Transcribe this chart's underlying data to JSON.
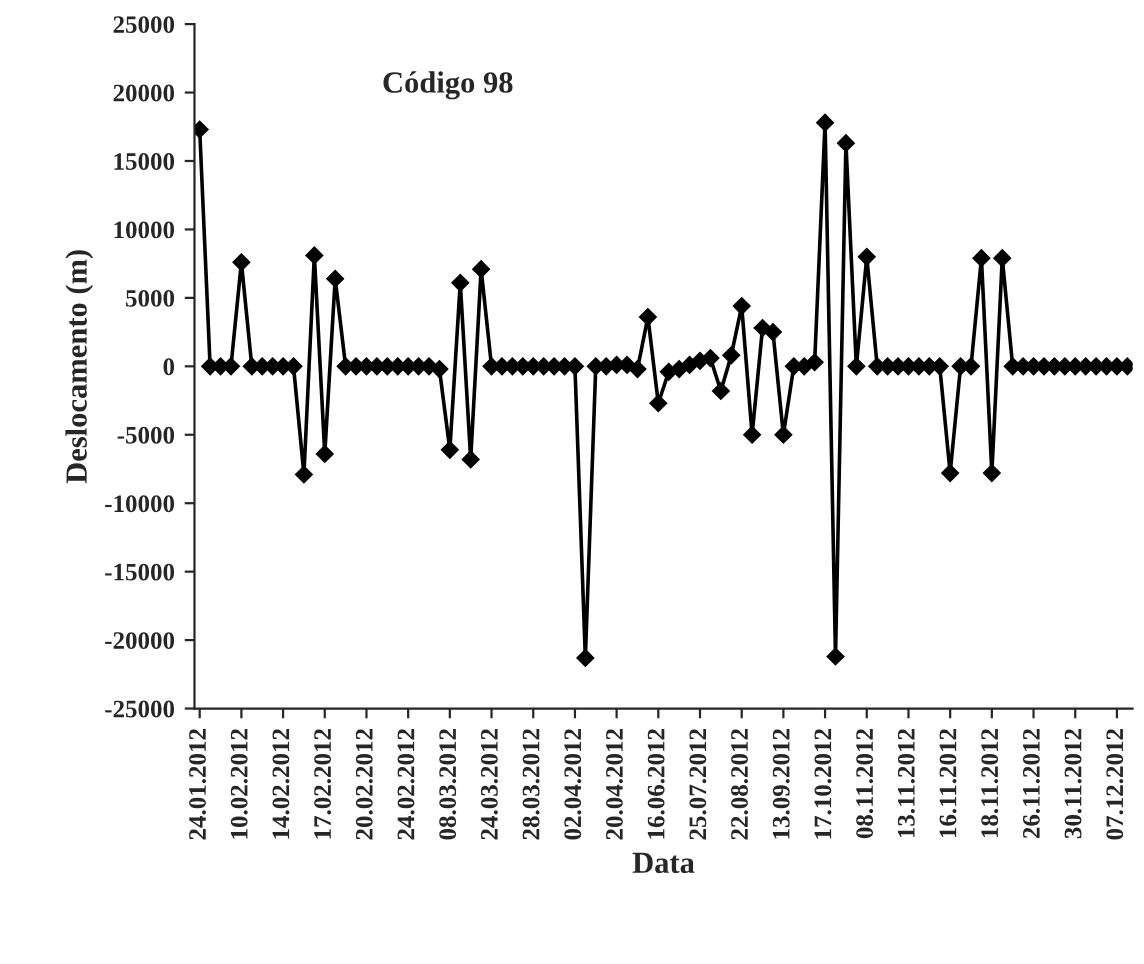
{
  "chart_data": {
    "type": "line",
    "title": "Código 98",
    "xlabel": "Data",
    "ylabel": "Deslocamento (m)",
    "categories": [
      "24.01.2012",
      null,
      null,
      null,
      "10.02.2012",
      null,
      null,
      null,
      "14.02.2012",
      null,
      null,
      null,
      "17.02.2012",
      null,
      null,
      null,
      "20.02.2012",
      null,
      null,
      null,
      "24.02.2012",
      null,
      null,
      null,
      "08.03.2012",
      null,
      null,
      null,
      "24.03.2012",
      null,
      null,
      null,
      "28.03.2012",
      null,
      null,
      null,
      "02.04.2012",
      null,
      null,
      null,
      "20.04.2012",
      null,
      null,
      null,
      "16.06.2012",
      null,
      null,
      null,
      "25.07.2012",
      null,
      null,
      null,
      "22.08.2012",
      null,
      null,
      null,
      "13.09.2012",
      null,
      null,
      null,
      "17.10.2012",
      null,
      null,
      null,
      "08.11.2012",
      null,
      null,
      null,
      "13.11.2012",
      null,
      null,
      null,
      "16.11.2012",
      null,
      null,
      null,
      "18.11.2012",
      null,
      null,
      null,
      "26.11.2012",
      null,
      null,
      null,
      "30.11.2012",
      null,
      null,
      null,
      "07.12.2012",
      null
    ],
    "series": [
      {
        "color": "#000000",
        "values": [
          17300,
          0,
          0,
          0,
          7600,
          0,
          0,
          0,
          0,
          0,
          -7900,
          8100,
          -6400,
          6400,
          0,
          0,
          0,
          0,
          0,
          0,
          0,
          0,
          0,
          -200,
          -6100,
          6100,
          -6800,
          7100,
          0,
          0,
          0,
          0,
          0,
          0,
          0,
          0,
          0,
          -21300,
          0,
          0,
          100,
          100,
          -200,
          3600,
          -2700,
          -400,
          -200,
          100,
          400,
          600,
          -1800,
          800,
          4400,
          -5000,
          2800,
          2500,
          -5000,
          0,
          0,
          300,
          17800,
          -21200,
          16300,
          0,
          8000,
          0,
          0,
          0,
          0,
          0,
          0,
          0,
          -7800,
          0,
          0,
          7900,
          -7800,
          7900,
          0,
          0,
          0,
          0,
          0,
          0,
          0,
          0,
          0,
          0,
          0,
          0
        ]
      }
    ],
    "ylim": [
      -25000,
      25000
    ],
    "yticks": [
      -25000,
      -20000,
      -15000,
      -10000,
      -5000,
      0,
      5000,
      10000,
      15000,
      20000,
      25000
    ],
    "grid": false,
    "legend": false,
    "marker": "diamond",
    "line_style": "solid"
  }
}
